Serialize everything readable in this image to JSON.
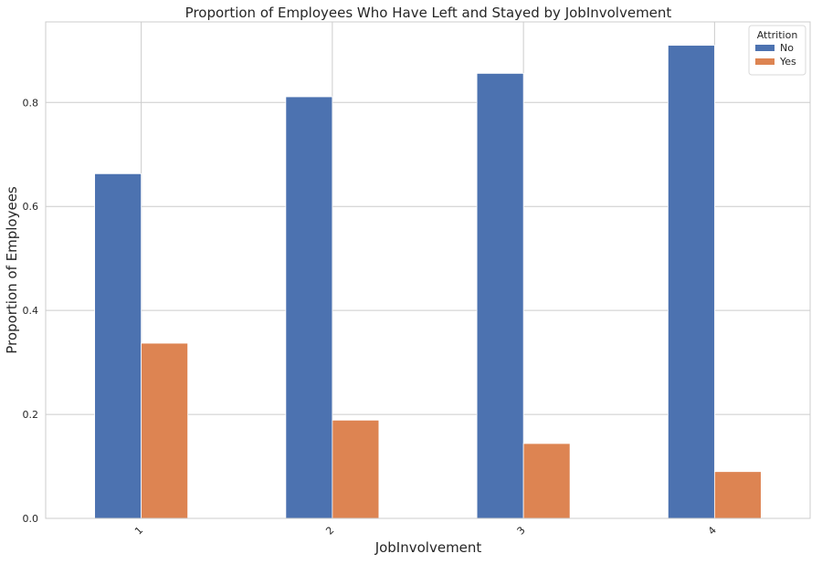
{
  "chart_data": {
    "type": "bar",
    "title": "Proportion of Employees Who Have Left and Stayed by JobInvolvement",
    "xlabel": "JobInvolvement",
    "ylabel": "Proportion of Employees",
    "categories": [
      "1",
      "2",
      "3",
      "4"
    ],
    "series": [
      {
        "name": "No",
        "values": [
          0.663,
          0.811,
          0.856,
          0.91
        ],
        "color": "#4c72b0"
      },
      {
        "name": "Yes",
        "values": [
          0.337,
          0.189,
          0.144,
          0.09
        ],
        "color": "#dd8452"
      }
    ],
    "ylim": [
      0,
      0.955
    ],
    "yticks": [
      0.0,
      0.2,
      0.4,
      0.6,
      0.8
    ],
    "ytick_labels": [
      "0.0",
      "0.2",
      "0.4",
      "0.6",
      "0.8"
    ],
    "grid": true,
    "legend": {
      "title": "Attrition",
      "placement": "top-right"
    }
  }
}
